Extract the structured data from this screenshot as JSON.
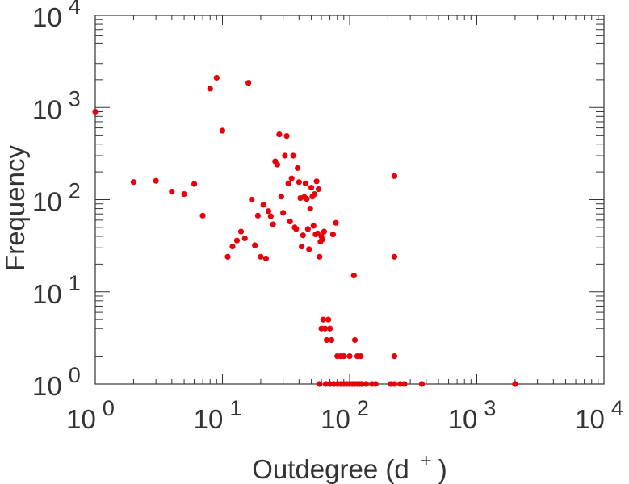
{
  "chart_data": {
    "type": "scatter",
    "xlabel_text": "Outdegree (d",
    "xlabel_sup": "+",
    "xlabel_close": ")",
    "ylabel": "Frequency",
    "x_scale": "log",
    "y_scale": "log",
    "xlim": [
      1,
      10000
    ],
    "ylim": [
      1,
      10000
    ],
    "grid": false,
    "marker_color": "#e8000b",
    "x_ticks": [
      {
        "base": "10",
        "exp": "0"
      },
      {
        "base": "10",
        "exp": "1"
      },
      {
        "base": "10",
        "exp": "2"
      },
      {
        "base": "10",
        "exp": "3"
      },
      {
        "base": "10",
        "exp": "4"
      }
    ],
    "y_ticks": [
      {
        "base": "10",
        "exp": "0"
      },
      {
        "base": "10",
        "exp": "1"
      },
      {
        "base": "10",
        "exp": "2"
      },
      {
        "base": "10",
        "exp": "3"
      },
      {
        "base": "10",
        "exp": "4"
      }
    ],
    "points": [
      [
        1,
        900
      ],
      [
        2,
        155
      ],
      [
        3,
        160
      ],
      [
        4,
        122
      ],
      [
        5,
        115
      ],
      [
        6,
        148
      ],
      [
        7,
        67
      ],
      [
        8,
        1600
      ],
      [
        9,
        2100
      ],
      [
        10,
        560
      ],
      [
        11,
        24
      ],
      [
        12,
        31
      ],
      [
        13,
        36
      ],
      [
        14,
        45
      ],
      [
        15,
        38
      ],
      [
        16,
        1850
      ],
      [
        17,
        100
      ],
      [
        18,
        32
      ],
      [
        19,
        67
      ],
      [
        20,
        24
      ],
      [
        21,
        88
      ],
      [
        22,
        23
      ],
      [
        23,
        75
      ],
      [
        24,
        66
      ],
      [
        25,
        54
      ],
      [
        26,
        260
      ],
      [
        27,
        240
      ],
      [
        28,
        510
      ],
      [
        29,
        108
      ],
      [
        30,
        72
      ],
      [
        31,
        300
      ],
      [
        32,
        490
      ],
      [
        33,
        150
      ],
      [
        34,
        58
      ],
      [
        35,
        170
      ],
      [
        36,
        300
      ],
      [
        37,
        50
      ],
      [
        38,
        48
      ],
      [
        39,
        220
      ],
      [
        40,
        155
      ],
      [
        41,
        104
      ],
      [
        42,
        31
      ],
      [
        43,
        41
      ],
      [
        44,
        107
      ],
      [
        45,
        150
      ],
      [
        46,
        102
      ],
      [
        47,
        48
      ],
      [
        48,
        29
      ],
      [
        49,
        80
      ],
      [
        50,
        135
      ],
      [
        51,
        108
      ],
      [
        52,
        52
      ],
      [
        53,
        115
      ],
      [
        54,
        42
      ],
      [
        55,
        158
      ],
      [
        56,
        43
      ],
      [
        57,
        130
      ],
      [
        58,
        24
      ],
      [
        59,
        35
      ],
      [
        60,
        40
      ],
      [
        61,
        37
      ],
      [
        63,
        45
      ],
      [
        60,
        4
      ],
      [
        62,
        5
      ],
      [
        64,
        4
      ],
      [
        66,
        3
      ],
      [
        68,
        5
      ],
      [
        70,
        4
      ],
      [
        72,
        3
      ],
      [
        74,
        42
      ],
      [
        78,
        56
      ],
      [
        80,
        2
      ],
      [
        85,
        2
      ],
      [
        90,
        2
      ],
      [
        100,
        2
      ],
      [
        108,
        15
      ],
      [
        110,
        3
      ],
      [
        115,
        2
      ],
      [
        122,
        2
      ],
      [
        58,
        1
      ],
      [
        65,
        1
      ],
      [
        70,
        1
      ],
      [
        75,
        1
      ],
      [
        80,
        1
      ],
      [
        85,
        1
      ],
      [
        90,
        1
      ],
      [
        95,
        1
      ],
      [
        100,
        1
      ],
      [
        105,
        1
      ],
      [
        110,
        1
      ],
      [
        115,
        1
      ],
      [
        120,
        1
      ],
      [
        125,
        1
      ],
      [
        135,
        1
      ],
      [
        150,
        1
      ],
      [
        160,
        1
      ],
      [
        210,
        1
      ],
      [
        225,
        1
      ],
      [
        250,
        1
      ],
      [
        270,
        1
      ],
      [
        370,
        1
      ],
      [
        2000,
        1
      ],
      [
        225,
        180
      ],
      [
        225,
        24
      ],
      [
        225,
        2
      ]
    ]
  }
}
